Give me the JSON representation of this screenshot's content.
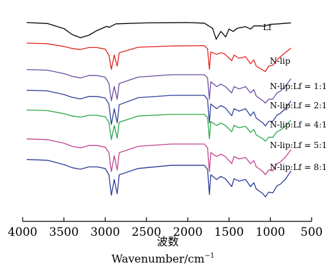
{
  "chart_data": {
    "type": "line",
    "title": "",
    "xlabel_cn": "波数",
    "xlabel": "Wavenumber/cm",
    "xlabel_sup": "−1",
    "xlim": [
      4000,
      500
    ],
    "xticks": [
      4000,
      3500,
      3000,
      2500,
      2000,
      1500,
      1000,
      500
    ],
    "y_axis_shown": false,
    "grid": false,
    "series": [
      {
        "name": "Lf",
        "color": "#000000",
        "points": [
          [
            3950,
            0.4
          ],
          [
            3700,
            1.0
          ],
          [
            3500,
            4.2
          ],
          [
            3400,
            8.0
          ],
          [
            3300,
            10.0
          ],
          [
            3200,
            8.5
          ],
          [
            3100,
            5.5
          ],
          [
            2980,
            2.8
          ],
          [
            2950,
            3.5
          ],
          [
            2930,
            2.8
          ],
          [
            2870,
            1.2
          ],
          [
            2500,
            0.6
          ],
          [
            2000,
            0.4
          ],
          [
            1800,
            0.8
          ],
          [
            1700,
            4.0
          ],
          [
            1655,
            11.0
          ],
          [
            1600,
            6.0
          ],
          [
            1540,
            9.5
          ],
          [
            1500,
            4.5
          ],
          [
            1450,
            6.0
          ],
          [
            1400,
            4.0
          ],
          [
            1380,
            3.8
          ],
          [
            1300,
            3.0
          ],
          [
            1240,
            4.5
          ],
          [
            1200,
            2.5
          ],
          [
            1100,
            2.5
          ],
          [
            1080,
            2.8
          ],
          [
            1000,
            1.5
          ],
          [
            900,
            1.2
          ],
          [
            800,
            0.8
          ],
          [
            750,
            0.6
          ]
        ]
      },
      {
        "name": "N-lip",
        "color": "#e2251e",
        "points": [
          [
            3950,
            0.4
          ],
          [
            3700,
            0.8
          ],
          [
            3500,
            2.5
          ],
          [
            3400,
            3.8
          ],
          [
            3300,
            4.5
          ],
          [
            3200,
            3.2
          ],
          [
            3100,
            3.2
          ],
          [
            3000,
            4.2
          ],
          [
            2955,
            8.0
          ],
          [
            2925,
            17.0
          ],
          [
            2890,
            8.0
          ],
          [
            2855,
            15.0
          ],
          [
            2830,
            6.5
          ],
          [
            2600,
            3.0
          ],
          [
            2200,
            2.2
          ],
          [
            1800,
            2.0
          ],
          [
            1760,
            4.0
          ],
          [
            1738,
            17.0
          ],
          [
            1720,
            6.0
          ],
          [
            1650,
            7.5
          ],
          [
            1600,
            6.5
          ],
          [
            1560,
            7.0
          ],
          [
            1467,
            11.5
          ],
          [
            1440,
            8.0
          ],
          [
            1378,
            10.0
          ],
          [
            1300,
            9.0
          ],
          [
            1240,
            13.5
          ],
          [
            1200,
            11.0
          ],
          [
            1170,
            15.0
          ],
          [
            1090,
            17.5
          ],
          [
            1060,
            18.5
          ],
          [
            1020,
            15.0
          ],
          [
            970,
            14.5
          ],
          [
            900,
            10.0
          ],
          [
            820,
            6.5
          ],
          [
            750,
            3.5
          ]
        ]
      },
      {
        "name": "N-lip:Lf = 1:1",
        "color": "#6a4ca0",
        "points": [
          [
            3950,
            0.2
          ],
          [
            3700,
            0.6
          ],
          [
            3500,
            2.8
          ],
          [
            3400,
            4.5
          ],
          [
            3300,
            5.5
          ],
          [
            3200,
            4.0
          ],
          [
            3100,
            4.0
          ],
          [
            3000,
            5.0
          ],
          [
            2955,
            9.0
          ],
          [
            2925,
            20.0
          ],
          [
            2890,
            11.0
          ],
          [
            2855,
            19.0
          ],
          [
            2830,
            9.0
          ],
          [
            2600,
            5.0
          ],
          [
            2200,
            3.5
          ],
          [
            1800,
            3.5
          ],
          [
            1760,
            5.5
          ],
          [
            1738,
            19.0
          ],
          [
            1720,
            8.0
          ],
          [
            1650,
            11.0
          ],
          [
            1600,
            9.5
          ],
          [
            1545,
            11.0
          ],
          [
            1467,
            15.0
          ],
          [
            1440,
            11.0
          ],
          [
            1378,
            12.5
          ],
          [
            1300,
            11.0
          ],
          [
            1240,
            15.0
          ],
          [
            1200,
            13.0
          ],
          [
            1170,
            17.0
          ],
          [
            1090,
            20.0
          ],
          [
            1060,
            21.5
          ],
          [
            1020,
            19.0
          ],
          [
            970,
            19.0
          ],
          [
            920,
            15.0
          ],
          [
            880,
            14.0
          ],
          [
            820,
            11.0
          ],
          [
            750,
            6.0
          ]
        ]
      },
      {
        "name": "N-lip:Lf = 2:1",
        "color": "#2f3f9a",
        "points": [
          [
            3950,
            0.3
          ],
          [
            3700,
            0.7
          ],
          [
            3500,
            3.0
          ],
          [
            3400,
            4.8
          ],
          [
            3300,
            5.8
          ],
          [
            3200,
            4.2
          ],
          [
            3100,
            4.2
          ],
          [
            3000,
            5.2
          ],
          [
            2955,
            9.0
          ],
          [
            2925,
            22.0
          ],
          [
            2890,
            12.0
          ],
          [
            2855,
            21.0
          ],
          [
            2830,
            9.5
          ],
          [
            2600,
            5.0
          ],
          [
            2200,
            3.5
          ],
          [
            1800,
            3.5
          ],
          [
            1760,
            6.0
          ],
          [
            1738,
            21.0
          ],
          [
            1720,
            9.0
          ],
          [
            1650,
            12.0
          ],
          [
            1600,
            10.0
          ],
          [
            1545,
            11.5
          ],
          [
            1467,
            16.5
          ],
          [
            1440,
            12.0
          ],
          [
            1378,
            13.5
          ],
          [
            1300,
            12.0
          ],
          [
            1240,
            16.5
          ],
          [
            1200,
            14.0
          ],
          [
            1170,
            18.0
          ],
          [
            1090,
            21.0
          ],
          [
            1060,
            23.0
          ],
          [
            1020,
            20.0
          ],
          [
            970,
            20.0
          ],
          [
            920,
            16.0
          ],
          [
            880,
            15.0
          ],
          [
            820,
            12.0
          ],
          [
            750,
            7.0
          ]
        ]
      },
      {
        "name": "N-lip:Lf = 4:1",
        "color": "#2ba84a",
        "points": [
          [
            3950,
            0.2
          ],
          [
            3700,
            0.6
          ],
          [
            3500,
            2.5
          ],
          [
            3400,
            4.0
          ],
          [
            3300,
            4.8
          ],
          [
            3200,
            3.5
          ],
          [
            3100,
            3.5
          ],
          [
            3000,
            4.5
          ],
          [
            2955,
            8.0
          ],
          [
            2925,
            19.0
          ],
          [
            2890,
            10.0
          ],
          [
            2855,
            18.0
          ],
          [
            2830,
            8.0
          ],
          [
            2600,
            4.0
          ],
          [
            2200,
            3.0
          ],
          [
            1800,
            3.0
          ],
          [
            1760,
            5.0
          ],
          [
            1738,
            18.5
          ],
          [
            1720,
            7.5
          ],
          [
            1650,
            10.0
          ],
          [
            1600,
            8.5
          ],
          [
            1545,
            10.0
          ],
          [
            1467,
            14.0
          ],
          [
            1440,
            10.0
          ],
          [
            1378,
            11.5
          ],
          [
            1300,
            10.5
          ],
          [
            1240,
            14.5
          ],
          [
            1200,
            12.5
          ],
          [
            1170,
            16.0
          ],
          [
            1090,
            18.5
          ],
          [
            1060,
            20.0
          ],
          [
            1020,
            17.5
          ],
          [
            970,
            17.5
          ],
          [
            920,
            14.0
          ],
          [
            880,
            13.0
          ],
          [
            820,
            10.5
          ],
          [
            750,
            6.5
          ]
        ]
      },
      {
        "name": "N-lip:Lf = 5:1",
        "color": "#c0448f",
        "points": [
          [
            3950,
            0.3
          ],
          [
            3700,
            0.8
          ],
          [
            3500,
            3.0
          ],
          [
            3400,
            5.0
          ],
          [
            3300,
            6.0
          ],
          [
            3200,
            4.5
          ],
          [
            3100,
            4.5
          ],
          [
            3000,
            5.5
          ],
          [
            2955,
            9.0
          ],
          [
            2925,
            21.0
          ],
          [
            2890,
            11.0
          ],
          [
            2855,
            20.0
          ],
          [
            2830,
            9.0
          ],
          [
            2600,
            5.0
          ],
          [
            2200,
            3.5
          ],
          [
            1800,
            3.5
          ],
          [
            1760,
            6.0
          ],
          [
            1738,
            21.0
          ],
          [
            1720,
            9.0
          ],
          [
            1650,
            11.5
          ],
          [
            1600,
            10.0
          ],
          [
            1545,
            11.5
          ],
          [
            1467,
            16.0
          ],
          [
            1440,
            11.5
          ],
          [
            1378,
            13.0
          ],
          [
            1300,
            12.0
          ],
          [
            1240,
            16.0
          ],
          [
            1200,
            14.0
          ],
          [
            1170,
            18.0
          ],
          [
            1090,
            21.0
          ],
          [
            1060,
            23.0
          ],
          [
            1020,
            20.0
          ],
          [
            970,
            20.5
          ],
          [
            920,
            16.0
          ],
          [
            880,
            15.0
          ],
          [
            820,
            12.0
          ],
          [
            750,
            7.0
          ]
        ]
      },
      {
        "name": "N-lip:Lf = 8:1",
        "color": "#2b3a95",
        "points": [
          [
            3950,
            0.3
          ],
          [
            3700,
            0.8
          ],
          [
            3500,
            3.5
          ],
          [
            3400,
            5.5
          ],
          [
            3300,
            6.5
          ],
          [
            3200,
            5.0
          ],
          [
            3100,
            5.0
          ],
          [
            3000,
            6.0
          ],
          [
            2955,
            10.0
          ],
          [
            2925,
            23.0
          ],
          [
            2890,
            13.0
          ],
          [
            2855,
            22.0
          ],
          [
            2830,
            10.0
          ],
          [
            2600,
            6.0
          ],
          [
            2200,
            4.0
          ],
          [
            1800,
            4.0
          ],
          [
            1760,
            6.5
          ],
          [
            1738,
            22.5
          ],
          [
            1720,
            10.0
          ],
          [
            1650,
            13.0
          ],
          [
            1600,
            11.0
          ],
          [
            1545,
            12.5
          ],
          [
            1467,
            17.5
          ],
          [
            1440,
            12.5
          ],
          [
            1378,
            14.0
          ],
          [
            1300,
            13.0
          ],
          [
            1240,
            17.5
          ],
          [
            1200,
            15.0
          ],
          [
            1170,
            19.0
          ],
          [
            1090,
            22.0
          ],
          [
            1060,
            24.0
          ],
          [
            1020,
            21.0
          ],
          [
            970,
            21.5
          ],
          [
            920,
            17.0
          ],
          [
            880,
            16.0
          ],
          [
            820,
            13.0
          ],
          [
            750,
            7.5
          ]
        ]
      }
    ],
    "series_labels": [
      "Lf",
      "N-lip",
      "N-lip:Lf = 1:1",
      "N-lip:Lf = 2:1",
      "N-lip:Lf = 4:1",
      "N-lip:Lf = 5:1",
      "N-lip:Lf = 8:1"
    ]
  }
}
